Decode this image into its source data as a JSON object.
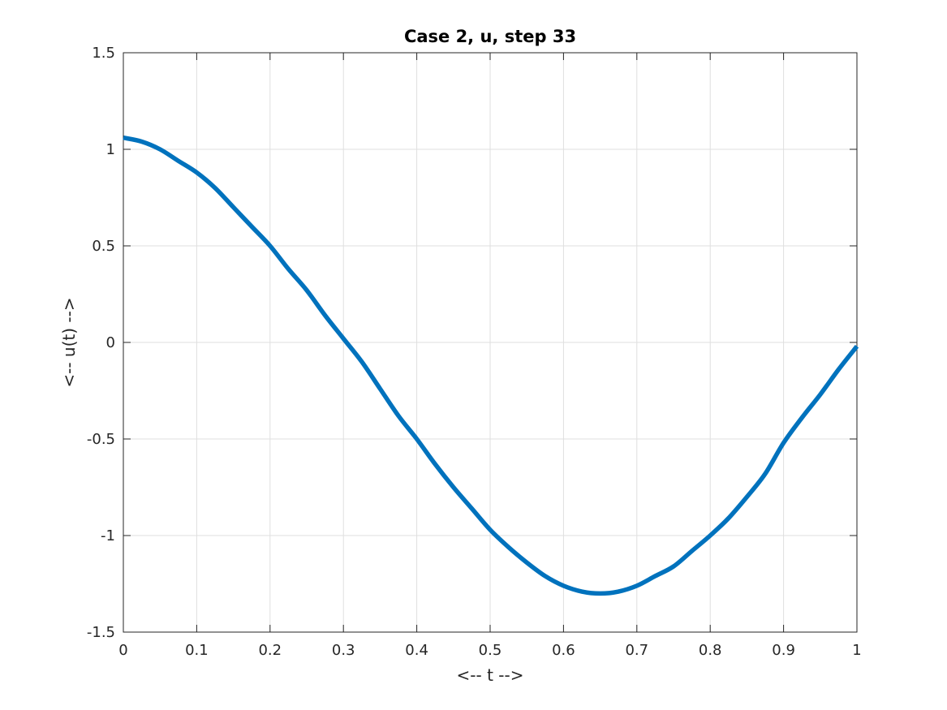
{
  "chart_data": {
    "type": "line",
    "title": "Case 2, u, step 33",
    "xlabel": "<-- t -->",
    "ylabel": "<-- u(t) -->",
    "xlim": [
      0,
      1
    ],
    "ylim": [
      -1.5,
      1.5
    ],
    "xticks": [
      "0",
      "0.1",
      "0.2",
      "0.3",
      "0.4",
      "0.5",
      "0.6",
      "0.7",
      "0.8",
      "0.9",
      "1"
    ],
    "yticks": [
      "1.5",
      "1",
      "0.5",
      "0",
      "-0.5",
      "-1",
      "-1.5"
    ],
    "grid": true,
    "series": [
      {
        "color": "#0072BD",
        "x": [
          0,
          0.025,
          0.05,
          0.075,
          0.1,
          0.125,
          0.15,
          0.175,
          0.2,
          0.225,
          0.25,
          0.275,
          0.3,
          0.325,
          0.35,
          0.375,
          0.4,
          0.425,
          0.45,
          0.475,
          0.5,
          0.525,
          0.55,
          0.575,
          0.6,
          0.625,
          0.65,
          0.675,
          0.7,
          0.725,
          0.75,
          0.775,
          0.8,
          0.825,
          0.85,
          0.875,
          0.9,
          0.925,
          0.95,
          0.975,
          1.0
        ],
        "y": [
          1.06,
          1.04,
          1.0,
          0.94,
          0.88,
          0.8,
          0.7,
          0.6,
          0.5,
          0.38,
          0.27,
          0.14,
          0.02,
          -0.1,
          -0.24,
          -0.38,
          -0.5,
          -0.63,
          -0.75,
          -0.86,
          -0.97,
          -1.06,
          -1.14,
          -1.21,
          -1.26,
          -1.29,
          -1.3,
          -1.29,
          -1.26,
          -1.21,
          -1.16,
          -1.08,
          -1.0,
          -0.91,
          -0.8,
          -0.68,
          -0.52,
          -0.39,
          -0.27,
          -0.14,
          -0.02
        ]
      }
    ]
  }
}
